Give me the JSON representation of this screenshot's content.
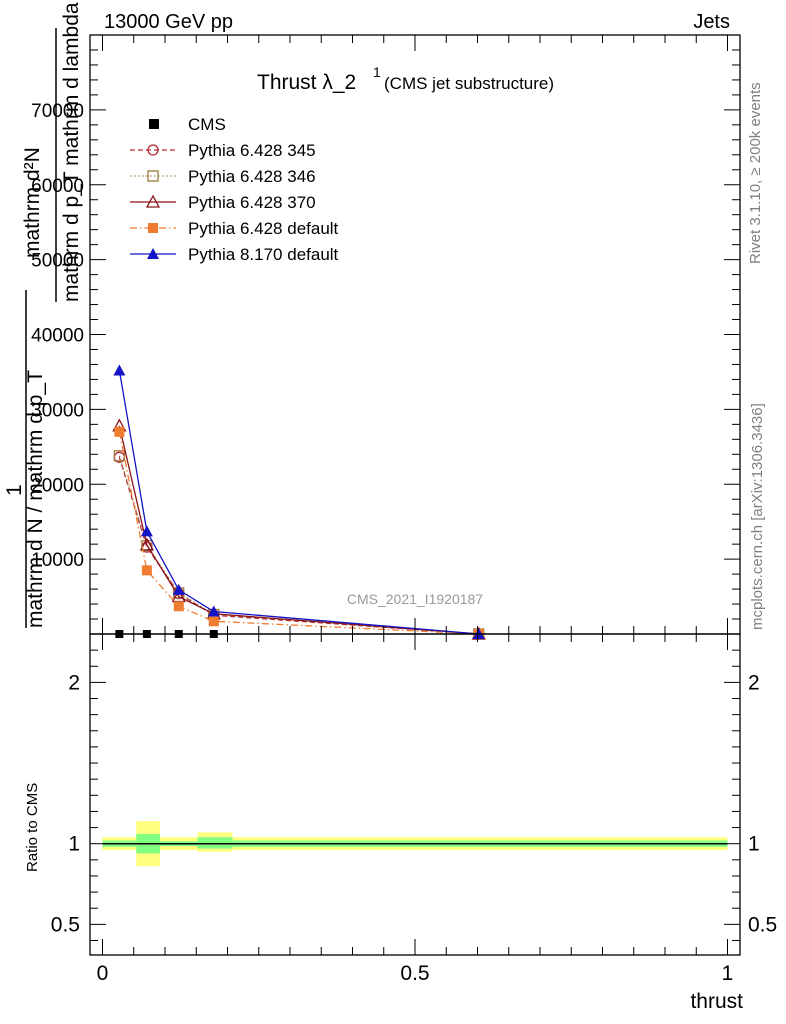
{
  "header": {
    "energy": "13000 GeV pp",
    "category": "Jets"
  },
  "side_text": {
    "rivet": "Rivet 3.1.10, ≥ 200k events",
    "source": "mcplots.cern.ch [arXiv:1306.3436]"
  },
  "watermark": "CMS_2021_I1920187",
  "chart_data": [
    {
      "type": "line",
      "title_main": "Thrust λ_2",
      "title_sup": "1",
      "title_note": "(CMS jet substructure)",
      "xlabel": "",
      "ylabel_lines": [
        "mathrm d²N",
        "mathrm d p_T mathrm d lambda"
      ],
      "ylabel_prefix_num": "1",
      "ylabel_prefix_den": "mathrm d N / mathrm d p_T",
      "xlim": [
        -0.02,
        1.02
      ],
      "ylim": [
        0,
        80000
      ],
      "yticks": [
        {
          "v": 10000,
          "label": "10000"
        },
        {
          "v": 20000,
          "label": "20000"
        },
        {
          "v": 30000,
          "label": "30000"
        },
        {
          "v": 40000,
          "label": "40000"
        },
        {
          "v": 50000,
          "label": "50000"
        },
        {
          "v": 60000,
          "label": "60000"
        },
        {
          "v": 70000,
          "label": "70000"
        }
      ],
      "legend_position": "top-left",
      "series": [
        {
          "name": "CMS",
          "color": "#000000",
          "marker": "square-filled",
          "dash": "none",
          "x": [
            0.027,
            0.071,
            0.122,
            0.178
          ],
          "y": [
            0,
            0,
            0,
            0
          ]
        },
        {
          "name": "Pythia 6.428 345",
          "color": "#b5293a",
          "marker": "circle-open",
          "dash": "5,3",
          "x": [
            0.027,
            0.071,
            0.122,
            0.178,
            0.602
          ],
          "y": [
            23600,
            11600,
            5400,
            2500,
            0
          ]
        },
        {
          "name": "Pythia 6.428 346",
          "color": "#9c7a3c",
          "marker": "square-open",
          "dash": "1.5,2.5",
          "x": [
            0.027,
            0.071,
            0.122,
            0.178,
            0.602
          ],
          "y": [
            23800,
            11800,
            5500,
            2600,
            0
          ]
        },
        {
          "name": "Pythia 6.428 370",
          "color": "#8b1218",
          "marker": "triangle-open",
          "dash": "none",
          "x": [
            0.027,
            0.071,
            0.122,
            0.178,
            0.602
          ],
          "y": [
            27800,
            11900,
            5000,
            2700,
            0
          ]
        },
        {
          "name": "Pythia 6.428 default",
          "color": "#f07c30",
          "marker": "square-filled",
          "dash": "7,3,1.5,3",
          "x": [
            0.027,
            0.071,
            0.122,
            0.178,
            0.602
          ],
          "y": [
            27000,
            8500,
            3700,
            1700,
            0
          ]
        },
        {
          "name": "Pythia 8.170 default",
          "color": "#1414c8",
          "marker": "triangle-filled",
          "dash": "none",
          "x": [
            0.027,
            0.071,
            0.122,
            0.178,
            0.602
          ],
          "y": [
            35200,
            13700,
            5900,
            3000,
            0
          ]
        }
      ]
    },
    {
      "type": "line",
      "title": "",
      "xlabel": "thrust",
      "ylabel": "Ratio to CMS",
      "xlim": [
        -0.02,
        1.02
      ],
      "ylim": [
        0.31,
        2.3
      ],
      "xticks": [
        {
          "v": 0,
          "label": "0"
        },
        {
          "v": 0.5,
          "label": "0.5"
        },
        {
          "v": 1,
          "label": "1"
        }
      ],
      "yticks": [
        {
          "v": 0.5,
          "label": "0.5"
        },
        {
          "v": 1,
          "label": "1"
        },
        {
          "v": 2,
          "label": "2"
        }
      ],
      "reference": 1.0,
      "bands": [
        {
          "x0": 0.0,
          "x1": 0.054,
          "outer": [
            0.96,
            1.04
          ],
          "inner": [
            0.98,
            1.02
          ]
        },
        {
          "x0": 0.054,
          "x1": 0.092,
          "outer": [
            0.86,
            1.14
          ],
          "inner": [
            0.94,
            1.06
          ]
        },
        {
          "x0": 0.092,
          "x1": 0.152,
          "outer": [
            0.96,
            1.04
          ],
          "inner": [
            0.985,
            1.015
          ]
        },
        {
          "x0": 0.152,
          "x1": 0.208,
          "outer": [
            0.95,
            1.07
          ],
          "inner": [
            0.97,
            1.04
          ]
        },
        {
          "x0": 0.208,
          "x1": 1.0,
          "outer": [
            0.96,
            1.04
          ],
          "inner": [
            0.98,
            1.02
          ]
        }
      ],
      "band_colors": {
        "outer": "#ffff80",
        "inner": "#80ff80"
      }
    }
  ]
}
